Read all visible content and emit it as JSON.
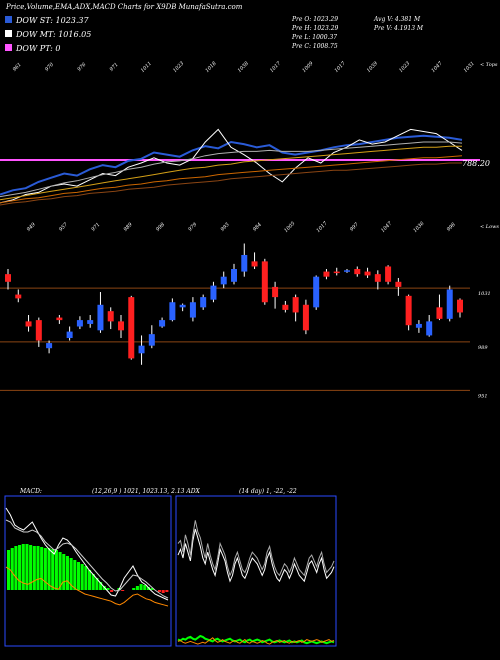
{
  "header": {
    "title": "Price,Volume,EMA,ADX,MACD Charts for X9DB MunafaSutra.com",
    "legend": [
      {
        "label": "DOW ST: 1023.37",
        "color": "#2a5bd7"
      },
      {
        "label": "DOW MT: 1016.05",
        "color": "#ffffff"
      },
      {
        "label": "DOW PT: 0",
        "color": "#ff55ff"
      }
    ],
    "stats_left": [
      "Pre   O: 1023.29",
      "Pre   H: 1023.29",
      "Pre   L: 1000.37",
      "Pre   C: 1008.75"
    ],
    "stats_right": [
      "Avg V: 4.381 M",
      "Pre   V: 4.1913 M"
    ]
  },
  "panel1": {
    "corner_label": "< Tops",
    "price_label": "788.20",
    "top_ticks": [
      "961",
      "970",
      "976",
      "971",
      "1011",
      "1023",
      "1018",
      "1038",
      "1017",
      "1009",
      "1017",
      "1039",
      "1023",
      "1047",
      "1031"
    ],
    "bottom_ticks": [
      "949",
      "957",
      "971",
      "989",
      "998",
      "979",
      "993",
      "984",
      "1005",
      "1017",
      "997",
      "1047",
      "1036",
      "998"
    ]
  },
  "panel2": {
    "corner_label": "< Lows",
    "levels": [
      "1031",
      "989",
      "951"
    ]
  },
  "panel3": {
    "macd_label": "MACD:",
    "macd_params": "(12,26,9 ) 1021, 1023.13, 2.13 ADX",
    "adx_params": "(14  day) 1, -22, -22"
  },
  "chart_data": [
    {
      "type": "line",
      "title": "",
      "x_ticks_top": [
        "961",
        "970",
        "976",
        "971",
        "1011",
        "1023",
        "1018",
        "1038",
        "1017",
        "1009",
        "1017",
        "1039",
        "1023",
        "1047",
        "1031"
      ],
      "x_ticks_bottom": [
        "949",
        "957",
        "971",
        "989",
        "998",
        "979",
        "993",
        "984",
        "1005",
        "1017",
        "997",
        "1047",
        "1036",
        "998"
      ],
      "series": [
        {
          "values": [
            0.1,
            0.14,
            0.16,
            0.22,
            0.26,
            0.3,
            0.28,
            0.34,
            0.38,
            0.36,
            0.42,
            0.44,
            0.5,
            0.48,
            0.46,
            0.52,
            0.56,
            0.54,
            0.6,
            0.58,
            0.55,
            0.57,
            0.5,
            0.48,
            0.5,
            0.52,
            0.55,
            0.57,
            0.58,
            0.6,
            0.62,
            0.64,
            0.65,
            0.66,
            0.65,
            0.64,
            0.62
          ]
        },
        {
          "values": [
            0.02,
            0.05,
            0.1,
            0.12,
            0.18,
            0.2,
            0.18,
            0.24,
            0.3,
            0.28,
            0.36,
            0.4,
            0.45,
            0.4,
            0.38,
            0.44,
            0.6,
            0.72,
            0.55,
            0.48,
            0.4,
            0.3,
            0.22,
            0.35,
            0.45,
            0.4,
            0.5,
            0.55,
            0.62,
            0.58,
            0.6,
            0.66,
            0.72,
            0.7,
            0.68,
            0.6,
            0.52
          ]
        },
        {
          "values": [
            0.08,
            0.1,
            0.12,
            0.15,
            0.18,
            0.21,
            0.23,
            0.26,
            0.29,
            0.31,
            0.34,
            0.36,
            0.39,
            0.41,
            0.42,
            0.44,
            0.47,
            0.49,
            0.5,
            0.51,
            0.51,
            0.52,
            0.51,
            0.51,
            0.51,
            0.52,
            0.53,
            0.54,
            0.55,
            0.56,
            0.57,
            0.58,
            0.59,
            0.6,
            0.6,
            0.6,
            0.59
          ]
        },
        {
          "values": [
            0.05,
            0.07,
            0.09,
            0.11,
            0.13,
            0.15,
            0.17,
            0.19,
            0.21,
            0.23,
            0.25,
            0.27,
            0.29,
            0.31,
            0.33,
            0.35,
            0.36,
            0.38,
            0.39,
            0.41,
            0.42,
            0.43,
            0.44,
            0.45,
            0.46,
            0.47,
            0.48,
            0.49,
            0.5,
            0.51,
            0.52,
            0.53,
            0.54,
            0.55,
            0.55,
            0.56,
            0.56
          ]
        },
        {
          "values": [
            0.02,
            0.04,
            0.06,
            0.07,
            0.09,
            0.11,
            0.12,
            0.14,
            0.16,
            0.17,
            0.19,
            0.2,
            0.22,
            0.23,
            0.25,
            0.26,
            0.27,
            0.29,
            0.3,
            0.31,
            0.32,
            0.33,
            0.34,
            0.35,
            0.36,
            0.37,
            0.38,
            0.39,
            0.4,
            0.41,
            0.42,
            0.43,
            0.44,
            0.45,
            0.45,
            0.46,
            0.47
          ]
        },
        {
          "values": [
            0.0,
            0.02,
            0.03,
            0.05,
            0.06,
            0.08,
            0.09,
            0.11,
            0.12,
            0.13,
            0.15,
            0.16,
            0.17,
            0.19,
            0.2,
            0.21,
            0.22,
            0.23,
            0.25,
            0.26,
            0.27,
            0.28,
            0.29,
            0.3,
            0.31,
            0.32,
            0.33,
            0.33,
            0.34,
            0.35,
            0.36,
            0.37,
            0.38,
            0.39,
            0.39,
            0.4,
            0.4
          ]
        }
      ],
      "price_line": 788.2
    },
    {
      "type": "candlestick",
      "levels": [
        1031,
        989,
        951
      ],
      "candles": [
        {
          "o": 1042,
          "c": 1036,
          "h": 1046,
          "l": 1030,
          "up": false
        },
        {
          "o": 1026,
          "c": 1023,
          "h": 1030,
          "l": 1020,
          "up": false
        },
        {
          "o": 1005,
          "c": 1001,
          "h": 1010,
          "l": 997,
          "up": false
        },
        {
          "o": 1006,
          "c": 990,
          "h": 1008,
          "l": 985,
          "up": false
        },
        {
          "o": 984,
          "c": 988,
          "h": 990,
          "l": 980,
          "up": true
        },
        {
          "o": 1008,
          "c": 1006,
          "h": 1010,
          "l": 1003,
          "up": false
        },
        {
          "o": 992,
          "c": 997,
          "h": 1001,
          "l": 990,
          "up": true
        },
        {
          "o": 1001,
          "c": 1006,
          "h": 1009,
          "l": 999,
          "up": true
        },
        {
          "o": 1003,
          "c": 1006,
          "h": 1010,
          "l": 1000,
          "up": true
        },
        {
          "o": 998,
          "c": 1018,
          "h": 1028,
          "l": 996,
          "up": true
        },
        {
          "o": 1013,
          "c": 1005,
          "h": 1016,
          "l": 999,
          "up": false
        },
        {
          "o": 1005,
          "c": 998,
          "h": 1010,
          "l": 992,
          "up": false
        },
        {
          "o": 1024,
          "c": 976,
          "h": 1025,
          "l": 975,
          "up": false
        },
        {
          "o": 980,
          "c": 986,
          "h": 994,
          "l": 971,
          "up": true
        },
        {
          "o": 986,
          "c": 995,
          "h": 1002,
          "l": 984,
          "up": true
        },
        {
          "o": 1001,
          "c": 1006,
          "h": 1008,
          "l": 1000,
          "up": true
        },
        {
          "o": 1006,
          "c": 1020,
          "h": 1023,
          "l": 1005,
          "up": true
        },
        {
          "o": 1016,
          "c": 1018,
          "h": 1019,
          "l": 1013,
          "up": true
        },
        {
          "o": 1008,
          "c": 1020,
          "h": 1024,
          "l": 1005,
          "up": true
        },
        {
          "o": 1016,
          "c": 1024,
          "h": 1026,
          "l": 1014,
          "up": true
        },
        {
          "o": 1022,
          "c": 1033,
          "h": 1036,
          "l": 1020,
          "up": true
        },
        {
          "o": 1034,
          "c": 1040,
          "h": 1044,
          "l": 1031,
          "up": true
        },
        {
          "o": 1036,
          "c": 1046,
          "h": 1050,
          "l": 1034,
          "up": true
        },
        {
          "o": 1044,
          "c": 1057,
          "h": 1066,
          "l": 1040,
          "up": true
        },
        {
          "o": 1052,
          "c": 1048,
          "h": 1059,
          "l": 1046,
          "up": false
        },
        {
          "o": 1052,
          "c": 1020,
          "h": 1054,
          "l": 1018,
          "up": false
        },
        {
          "o": 1032,
          "c": 1024,
          "h": 1036,
          "l": 1015,
          "up": false
        },
        {
          "o": 1018,
          "c": 1014,
          "h": 1021,
          "l": 1012,
          "up": false
        },
        {
          "o": 1024,
          "c": 1012,
          "h": 1026,
          "l": 1005,
          "up": false
        },
        {
          "o": 1018,
          "c": 998,
          "h": 1022,
          "l": 995,
          "up": false
        },
        {
          "o": 1016,
          "c": 1040,
          "h": 1041,
          "l": 1014,
          "up": true
        },
        {
          "o": 1044,
          "c": 1040,
          "h": 1046,
          "l": 1038,
          "up": false
        },
        {
          "o": 1044,
          "c": 1043,
          "h": 1047,
          "l": 1041,
          "up": false
        },
        {
          "o": 1044,
          "c": 1045,
          "h": 1046,
          "l": 1043,
          "up": true
        },
        {
          "o": 1046,
          "c": 1042,
          "h": 1048,
          "l": 1040,
          "up": false
        },
        {
          "o": 1044,
          "c": 1041,
          "h": 1047,
          "l": 1039,
          "up": false
        },
        {
          "o": 1042,
          "c": 1036,
          "h": 1045,
          "l": 1030,
          "up": false
        },
        {
          "o": 1048,
          "c": 1036,
          "h": 1049,
          "l": 1034,
          "up": false
        },
        {
          "o": 1036,
          "c": 1032,
          "h": 1039,
          "l": 1025,
          "up": false
        },
        {
          "o": 1025,
          "c": 1002,
          "h": 1026,
          "l": 998,
          "up": false
        },
        {
          "o": 1000,
          "c": 1003,
          "h": 1006,
          "l": 996,
          "up": true
        },
        {
          "o": 994,
          "c": 1005,
          "h": 1010,
          "l": 993,
          "up": true
        },
        {
          "o": 1016,
          "c": 1007,
          "h": 1026,
          "l": 1006,
          "up": false
        },
        {
          "o": 1007,
          "c": 1030,
          "h": 1033,
          "l": 1005,
          "up": true
        },
        {
          "o": 1022,
          "c": 1012,
          "h": 1023,
          "l": 1008,
          "up": false
        }
      ]
    },
    {
      "type": "bar",
      "title": "MACD",
      "histogram": [
        40,
        42,
        44,
        45,
        46,
        46,
        45,
        44,
        44,
        43,
        42,
        42,
        41,
        40,
        38,
        36,
        34,
        32,
        30,
        28,
        26,
        24,
        20,
        16,
        12,
        8,
        4,
        2,
        -2,
        0,
        2,
        -1,
        0,
        0,
        2,
        4,
        6,
        5,
        3,
        2,
        0,
        -2,
        -3,
        -2
      ],
      "macd_line": [
        0.92,
        0.85,
        0.75,
        0.72,
        0.7,
        0.74,
        0.78,
        0.7,
        0.62,
        0.55,
        0.5,
        0.46,
        0.55,
        0.62,
        0.6,
        0.55,
        0.48,
        0.42,
        0.36,
        0.3,
        0.25,
        0.2,
        0.15,
        0.1,
        0.05,
        0.04,
        0.12,
        0.22,
        0.28,
        0.34,
        0.25,
        0.18,
        0.15,
        0.1,
        0.06,
        0.04,
        0.02,
        0.0
      ],
      "signal_line": [
        0.8,
        0.78,
        0.72,
        0.7,
        0.68,
        0.68,
        0.7,
        0.68,
        0.64,
        0.58,
        0.54,
        0.5,
        0.52,
        0.56,
        0.57,
        0.55,
        0.51,
        0.46,
        0.41,
        0.36,
        0.31,
        0.26,
        0.21,
        0.17,
        0.12,
        0.09,
        0.1,
        0.15,
        0.2,
        0.25,
        0.24,
        0.21,
        0.18,
        0.14,
        0.1,
        0.07,
        0.04,
        0.02
      ],
      "orange_line": [
        0.55,
        0.5,
        0.4,
        0.32,
        0.28,
        0.26,
        0.3,
        0.34,
        0.36,
        0.3,
        0.24,
        0.2,
        0.18,
        0.3,
        0.32,
        0.24,
        0.18,
        0.14,
        0.1,
        0.08,
        0.06,
        0.04,
        0.02,
        0.0,
        -0.02,
        -0.06,
        -0.08,
        -0.04,
        0.02,
        0.08,
        0.1,
        0.06,
        0.02,
        0.0,
        -0.04,
        -0.06,
        -0.08,
        -0.1
      ]
    },
    {
      "type": "line",
      "title": "ADX",
      "series": [
        {
          "values": [
            0.62,
            0.66,
            0.6,
            0.7,
            0.64,
            0.58,
            0.72,
            0.8,
            0.74,
            0.68,
            0.6,
            0.56,
            0.64,
            0.58,
            0.52,
            0.48,
            0.56,
            0.66,
            0.62,
            0.58,
            0.5,
            0.44,
            0.48,
            0.56,
            0.6,
            0.54,
            0.48,
            0.46,
            0.5,
            0.56,
            0.6,
            0.58,
            0.56,
            0.52,
            0.48,
            0.52,
            0.6,
            0.64,
            0.56,
            0.5,
            0.46,
            0.44,
            0.48,
            0.52,
            0.5,
            0.46,
            0.5,
            0.56,
            0.52,
            0.48,
            0.46,
            0.44,
            0.5,
            0.56,
            0.58,
            0.54,
            0.5,
            0.56,
            0.6,
            0.52,
            0.46,
            0.48,
            0.5,
            0.54
          ]
        },
        {
          "values": [
            0.7,
            0.72,
            0.64,
            0.76,
            0.7,
            0.62,
            0.76,
            0.86,
            0.78,
            0.74,
            0.66,
            0.6,
            0.7,
            0.62,
            0.56,
            0.52,
            0.6,
            0.7,
            0.66,
            0.62,
            0.54,
            0.48,
            0.52,
            0.6,
            0.64,
            0.58,
            0.52,
            0.5,
            0.54,
            0.6,
            0.64,
            0.62,
            0.6,
            0.56,
            0.52,
            0.56,
            0.64,
            0.68,
            0.6,
            0.54,
            0.5,
            0.48,
            0.52,
            0.56,
            0.54,
            0.5,
            0.54,
            0.6,
            0.56,
            0.52,
            0.5,
            0.48,
            0.54,
            0.6,
            0.62,
            0.58,
            0.54,
            0.6,
            0.64,
            0.56,
            0.5,
            0.52,
            0.54,
            0.58
          ]
        },
        {
          "values": [
            0.12,
            0.1,
            0.14,
            0.12,
            0.16,
            0.18,
            0.14,
            0.12,
            0.16,
            0.2,
            0.18,
            0.14,
            0.12,
            0.1,
            0.08,
            0.12,
            0.14,
            0.1,
            0.08,
            0.1,
            0.12,
            0.14,
            0.1,
            0.08,
            0.1,
            0.12,
            0.08,
            0.06,
            0.1,
            0.12,
            0.08,
            0.1,
            0.12,
            0.1,
            0.06,
            0.08,
            0.1,
            0.12,
            0.08,
            0.06,
            0.08,
            0.1,
            0.08,
            0.06,
            0.08,
            0.1,
            0.06,
            0.08,
            0.06,
            0.08,
            0.1,
            0.06,
            0.04,
            0.06,
            0.08,
            0.06,
            0.04,
            0.06,
            0.08,
            0.06,
            0.04,
            0.06,
            0.08,
            0.06
          ]
        },
        {
          "values": [
            0.08,
            0.1,
            0.06,
            0.04,
            0.06,
            0.08,
            0.06,
            0.04,
            0.02,
            0.04,
            0.06,
            0.04,
            0.08,
            0.12,
            0.16,
            0.1,
            0.06,
            0.08,
            0.12,
            0.08,
            0.06,
            0.04,
            0.08,
            0.1,
            0.06,
            0.04,
            0.08,
            0.12,
            0.06,
            0.04,
            0.08,
            0.06,
            0.04,
            0.06,
            0.1,
            0.08,
            0.04,
            0.02,
            0.06,
            0.08,
            0.1,
            0.06,
            0.08,
            0.1,
            0.06,
            0.04,
            0.08,
            0.06,
            0.08,
            0.1,
            0.06,
            0.08,
            0.12,
            0.1,
            0.08,
            0.1,
            0.12,
            0.1,
            0.06,
            0.08,
            0.1,
            0.12,
            0.08,
            0.1
          ]
        }
      ]
    }
  ],
  "colors": {
    "background": "#000000",
    "grid_brown": "#8b4513",
    "pink_line": "#ff55ff",
    "blue_line": "#2a5bd7",
    "up_candle": "#2a62ff",
    "down_candle": "#ff2020",
    "macd_histogram": "#00ff00",
    "macd_neg": "#ff2020",
    "adx_green": "#00ff00",
    "adx_orange": "#ff8800",
    "gold": "#d4a017",
    "orange": "#cc6600",
    "macd_lines": "#ffffff",
    "macd_orange": "#ff8800",
    "panel_border": "#2a4aff"
  }
}
